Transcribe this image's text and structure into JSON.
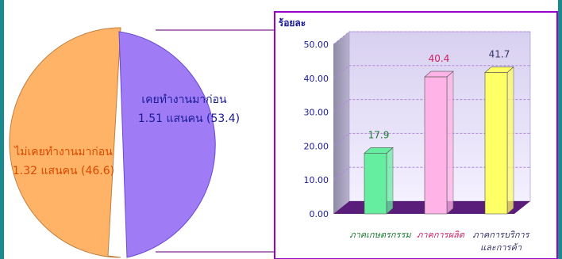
{
  "colors": {
    "frame": "#1a8a8f",
    "chart_border": "#9900cc",
    "pie_left": "#ffb366",
    "pie_right": "#9f7cf5"
  },
  "chart_data": [
    {
      "type": "pie",
      "exploded": true,
      "slices": [
        {
          "label": "ไม่เคยทำงานมาก่อน",
          "value_text": "1.32 แสนคน (46.6)",
          "value": 1.32,
          "percent": 46.6,
          "color": "#ffb366",
          "label_color": "#d94a00"
        },
        {
          "label": "เคยทำงานมาก่อน",
          "value_text": "1.51 แสนคน (53.4)",
          "value": 1.51,
          "percent": 53.4,
          "color": "#9f7cf5",
          "label_color": "#1a1a99"
        }
      ]
    },
    {
      "type": "bar",
      "style": "3d",
      "ylabel": "ร้อยละ",
      "ylim": [
        0,
        50
      ],
      "yticks": [
        "0.00",
        "10.00",
        "20.00",
        "30.00",
        "40.00",
        "50.00"
      ],
      "grid": true,
      "categories": [
        [
          "ภาคเกษตรกรรม"
        ],
        [
          "ภาคการผลิต"
        ],
        [
          "ภาคการบริการ",
          "และการค้า"
        ]
      ],
      "values": [
        17.9,
        40.4,
        41.7
      ],
      "value_labels": [
        "17.9",
        "40.4",
        "41.7"
      ],
      "bar_colors": [
        "#66eea0",
        "#ffb3e6",
        "#ffff66"
      ],
      "label_colors": [
        "#1a7a33",
        "#cc2266",
        "#333366"
      ]
    }
  ]
}
